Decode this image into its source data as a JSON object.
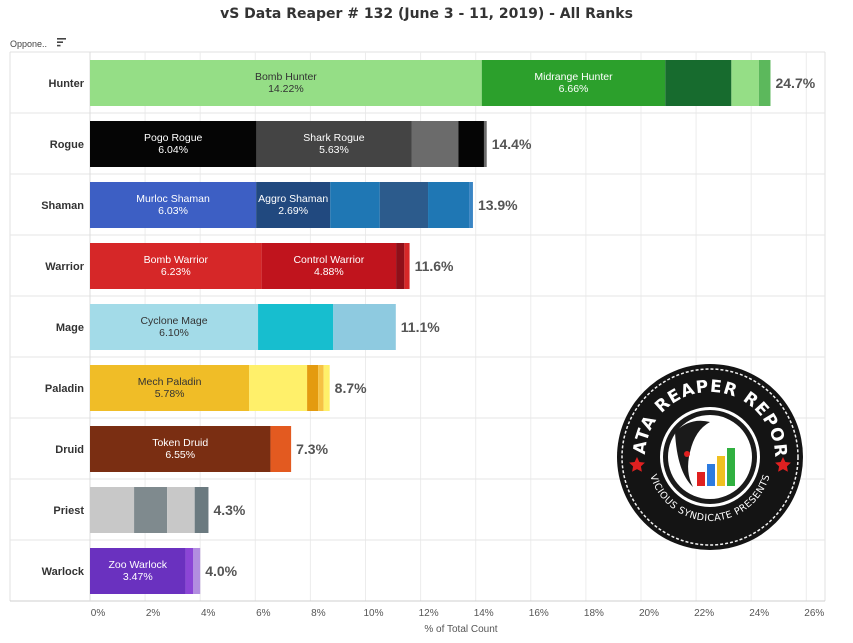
{
  "title": "vS Data Reaper # 132 (June 3 - 11, 2019) - All Ranks",
  "header": {
    "opponent_label": "Oppone..",
    "sort_icon": "sort-icon"
  },
  "logo": {
    "text_top": "DATA REAPER REPORT",
    "text_bottom": "VICIOUS SYNDICATE PRESENTS",
    "icon": "reaper-logo-icon"
  },
  "chart_data": {
    "type": "bar",
    "orientation": "horizontal",
    "stacked": true,
    "xlabel": "% of Total Count",
    "xlim": [
      0,
      26
    ],
    "xticks": [
      "0%",
      "2%",
      "4%",
      "6%",
      "8%",
      "10%",
      "12%",
      "14%",
      "16%",
      "18%",
      "20%",
      "22%",
      "24%",
      "26%"
    ],
    "grid": true,
    "categories": [
      {
        "name": "Hunter",
        "total_label": "24.7%",
        "segments": [
          {
            "label": "Bomb Hunter",
            "value_label": "14.22%",
            "value": 14.22,
            "color": "#95de86",
            "text_color": "#333333"
          },
          {
            "label": "Midrange Hunter",
            "value_label": "6.66%",
            "value": 6.66,
            "color": "#2ca02c",
            "text_color": "#ffffff"
          },
          {
            "label": "",
            "value_label": "",
            "value": 2.4,
            "color": "#176b2e"
          },
          {
            "label": "",
            "value_label": "",
            "value": 1.0,
            "color": "#95de86"
          },
          {
            "label": "",
            "value_label": "",
            "value": 0.42,
            "color": "#5cb85c"
          }
        ]
      },
      {
        "name": "Rogue",
        "total_label": "14.4%",
        "segments": [
          {
            "label": "Pogo Rogue",
            "value_label": "6.04%",
            "value": 6.04,
            "color": "#050505",
            "text_color": "#ffffff"
          },
          {
            "label": "Shark Rogue",
            "value_label": "5.63%",
            "value": 5.63,
            "color": "#444444",
            "text_color": "#ffffff"
          },
          {
            "label": "",
            "value_label": "",
            "value": 1.7,
            "color": "#6b6b6b"
          },
          {
            "label": "",
            "value_label": "",
            "value": 0.93,
            "color": "#050505"
          },
          {
            "label": "",
            "value_label": "",
            "value": 0.1,
            "color": "#6b6b6b"
          }
        ]
      },
      {
        "name": "Shaman",
        "total_label": "13.9%",
        "segments": [
          {
            "label": "Murloc Shaman",
            "value_label": "6.03%",
            "value": 6.03,
            "color": "#3d5fc4",
            "text_color": "#ffffff"
          },
          {
            "label": "Aggro Shaman",
            "value_label": "2.69%",
            "value": 2.69,
            "color": "#21497f",
            "text_color": "#ffffff"
          },
          {
            "label": "",
            "value_label": "",
            "value": 1.8,
            "color": "#1f77b4"
          },
          {
            "label": "",
            "value_label": "",
            "value": 1.75,
            "color": "#2c5b8c"
          },
          {
            "label": "",
            "value_label": "",
            "value": 1.5,
            "color": "#1f77b4"
          },
          {
            "label": "",
            "value_label": "",
            "value": 0.13,
            "color": "#3a85c4"
          }
        ]
      },
      {
        "name": "Warrior",
        "total_label": "11.6%",
        "segments": [
          {
            "label": "Bomb Warrior",
            "value_label": "6.23%",
            "value": 6.23,
            "color": "#d62728",
            "text_color": "#ffffff"
          },
          {
            "label": "Control Warrior",
            "value_label": "4.88%",
            "value": 4.88,
            "color": "#c0141d",
            "text_color": "#ffffff"
          },
          {
            "label": "",
            "value_label": "",
            "value": 0.3,
            "color": "#8f0f19"
          },
          {
            "label": "",
            "value_label": "",
            "value": 0.19,
            "color": "#d62728"
          }
        ]
      },
      {
        "name": "Mage",
        "total_label": "11.1%",
        "segments": [
          {
            "label": "Cyclone Mage",
            "value_label": "6.10%",
            "value": 6.1,
            "color": "#a3dbe8",
            "text_color": "#333333"
          },
          {
            "label": "",
            "value_label": "",
            "value": 2.73,
            "color": "#17becf"
          },
          {
            "label": "",
            "value_label": "",
            "value": 2.27,
            "color": "#8ecae0"
          }
        ]
      },
      {
        "name": "Paladin",
        "total_label": "8.7%",
        "segments": [
          {
            "label": "Mech Paladin",
            "value_label": "5.78%",
            "value": 5.78,
            "color": "#f0bd27",
            "text_color": "#333333"
          },
          {
            "label": "",
            "value_label": "",
            "value": 2.1,
            "color": "#fff06a"
          },
          {
            "label": "",
            "value_label": "",
            "value": 0.4,
            "color": "#e49b0f"
          },
          {
            "label": "",
            "value_label": "",
            "value": 0.2,
            "color": "#f6c244"
          },
          {
            "label": "",
            "value_label": "",
            "value": 0.22,
            "color": "#fff06a"
          }
        ]
      },
      {
        "name": "Druid",
        "total_label": "7.3%",
        "segments": [
          {
            "label": "Token Druid",
            "value_label": "6.55%",
            "value": 6.55,
            "color": "#7a2e12",
            "text_color": "#ffffff"
          },
          {
            "label": "",
            "value_label": "",
            "value": 0.75,
            "color": "#e35a20"
          }
        ]
      },
      {
        "name": "Priest",
        "total_label": "4.3%",
        "segments": [
          {
            "label": "",
            "value_label": "",
            "value": 1.6,
            "color": "#c8c8c8"
          },
          {
            "label": "",
            "value_label": "",
            "value": 1.2,
            "color": "#7f8a8e"
          },
          {
            "label": "",
            "value_label": "",
            "value": 1.0,
            "color": "#c8c8c8"
          },
          {
            "label": "",
            "value_label": "",
            "value": 0.5,
            "color": "#6b7a80"
          }
        ]
      },
      {
        "name": "Warlock",
        "total_label": "4.0%",
        "segments": [
          {
            "label": "Zoo Warlock",
            "value_label": "3.47%",
            "value": 3.47,
            "color": "#6a31bf",
            "text_color": "#ffffff"
          },
          {
            "label": "",
            "value_label": "",
            "value": 0.28,
            "color": "#8b45d6"
          },
          {
            "label": "",
            "value_label": "",
            "value": 0.25,
            "color": "#b28de0"
          }
        ]
      }
    ]
  }
}
